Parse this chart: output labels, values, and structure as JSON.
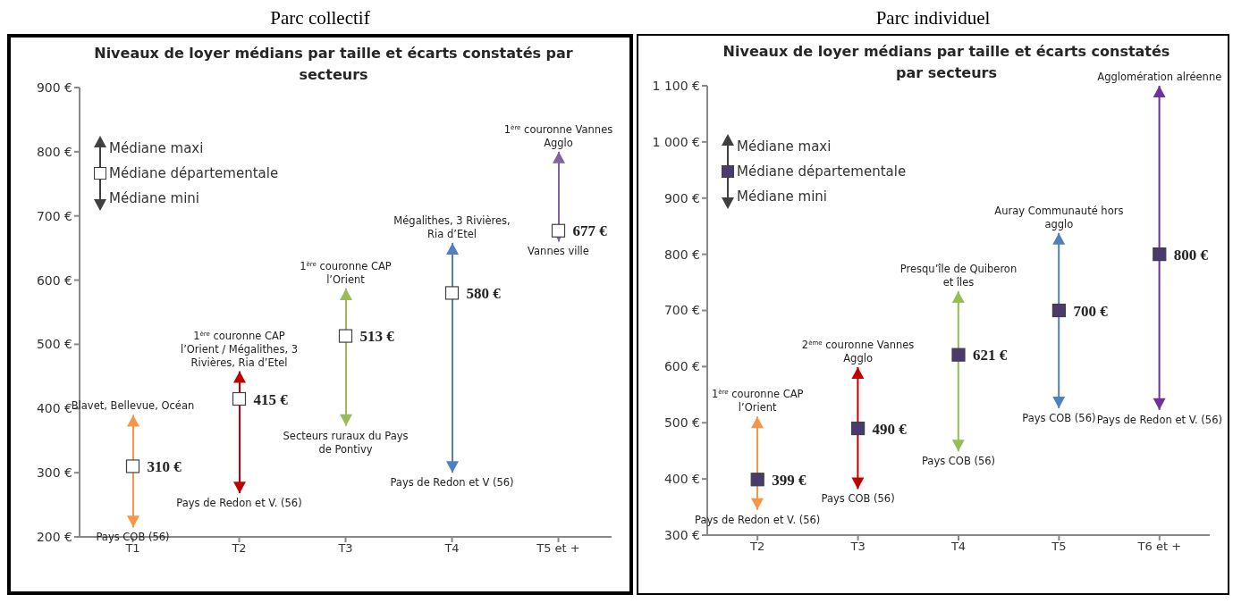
{
  "chart_data": [
    {
      "type": "bar",
      "title": "Parc collectif",
      "subtitle": "Niveaux de loyer médians par taille et écarts constatés par secteurs",
      "categories": [
        "T1",
        "T2",
        "T3",
        "T4",
        "T5 et +"
      ],
      "series": [
        {
          "base": [
            215,
            268,
            373,
            300,
            660
          ],
          "values": [
            175,
            190,
            214,
            358,
            140
          ],
          "colors": [
            "#f79646",
            "#c00000",
            "#9bbb59",
            "#4f81bd",
            "#8064a2"
          ]
        },
        {
          "type": "scatter",
          "name": "Médiane départementale",
          "color": "#ffffff",
          "values": [
            310,
            415,
            513,
            580,
            677
          ],
          "value_labels": [
            "310 €",
            "415 €",
            "513 €",
            "580 €",
            "677 €"
          ]
        }
      ],
      "ylim": [
        200,
        900
      ],
      "yticks": [
        {
          "value": 200,
          "label": "200 €"
        },
        {
          "value": 300,
          "label": "300 €"
        },
        {
          "value": 400,
          "label": "400 €"
        },
        {
          "value": 500,
          "label": "500 €"
        },
        {
          "value": 600,
          "label": "600 €"
        },
        {
          "value": 700,
          "label": "700 €"
        },
        {
          "value": 800,
          "label": "800 €"
        },
        {
          "value": 900,
          "label": "900 €"
        }
      ],
      "legend": "top left",
      "marker": "square",
      "annotations": [
        "Médiane maxi",
        "Médiane mini",
        {
          "text": "Blavet, Bellevue, Océan",
          "x": "T1",
          "y": 390
        },
        {
          "text": "Pays COB (56)",
          "x": "T1",
          "y": 215
        },
        {
          "text": "1$^{ère}$ couronne CAP l’Orient / Mégalithes, 3 Rivières, Ria d’Etel",
          "x": "T2",
          "y": 458
        },
        {
          "text": "Pays de Redon et V. (56)",
          "x": "T2",
          "y": 268
        },
        {
          "text": "1$^{ère}$ couronne CAP l’Orient",
          "x": "T3",
          "y": 587
        },
        {
          "text": "Secteurs ruraux du Pays de Pontivy",
          "x": "T3",
          "y": 373
        },
        {
          "text": "Mégalithes, 3 Rivières, Ria d’Etel",
          "x": "T4",
          "y": 658
        },
        {
          "text": "Pays de Redon et V (56)",
          "x": "T4",
          "y": 300
        },
        {
          "text": "1$^{ère}$ couronne Vannes Agglo",
          "x": "T5 et +",
          "y": 800
        },
        {
          "text": "Vannes ville",
          "x": "T5 et +",
          "y": 660
        }
      ]
    },
    {
      "type": "bar",
      "title": "Parc individuel",
      "subtitle": "Niveaux de loyer médians par taille et écarts constatés par secteurs",
      "categories": [
        "T2",
        "T3",
        "T4",
        "T5",
        "T6 et +"
      ],
      "series": [
        {
          "base": [
            345,
            382,
            449,
            526,
            523
          ],
          "values": [
            166,
            217,
            285,
            312,
            577
          ],
          "colors": [
            "#f79646",
            "#c00000",
            "#9bbb59",
            "#4f81bd",
            "#7030a0"
          ]
        },
        {
          "type": "scatter",
          "name": "Médiane départementale",
          "color": "#4b3a6e",
          "values": [
            399,
            490,
            621,
            700,
            800
          ],
          "value_labels": [
            "399 €",
            "490 €",
            "621 €",
            "700 €",
            "800 €"
          ]
        }
      ],
      "ylim": [
        300,
        1100
      ],
      "yticks": [
        {
          "value": 300,
          "label": "300 €"
        },
        {
          "value": 400,
          "label": "400 €"
        },
        {
          "value": 500,
          "label": "500 €"
        },
        {
          "value": 600,
          "label": "600 €"
        },
        {
          "value": 700,
          "label": "700 €"
        },
        {
          "value": 800,
          "label": "800 €"
        },
        {
          "value": 900,
          "label": "900 €"
        },
        {
          "value": 1000,
          "label": "1 000 €"
        },
        {
          "value": 1100,
          "label": "1 100 €"
        }
      ],
      "legend": "top left",
      "marker": "square",
      "annotations": [
        "Médiane maxi",
        "Médiane mini",
        {
          "text": "1$^{ère}$ couronne CAP l’Orient",
          "x": "T2",
          "y": 511
        },
        {
          "text": "Pays de Redon et V. (56)",
          "x": "T2",
          "y": 345
        },
        {
          "text": "2$^{ème}$ couronne Vannes Agglo",
          "x": "T3",
          "y": 599
        },
        {
          "text": "Pays COB (56)",
          "x": "T3",
          "y": 382
        },
        {
          "text": "Presqu’île de Quiberon et îles",
          "x": "T4",
          "y": 734
        },
        {
          "text": "Pays COB (56)",
          "x": "T4",
          "y": 449
        },
        {
          "text": "Auray Communauté hors agglo",
          "x": "T5",
          "y": 838
        },
        {
          "text": "Pays COB (56)",
          "x": "T5",
          "y": 526
        },
        {
          "text": "Agglomération alréenne",
          "x": "T6 et +",
          "y": 1100
        },
        {
          "text": "Pays de Redon et V. (56)",
          "x": "T6 et +",
          "y": 523
        }
      ]
    }
  ]
}
